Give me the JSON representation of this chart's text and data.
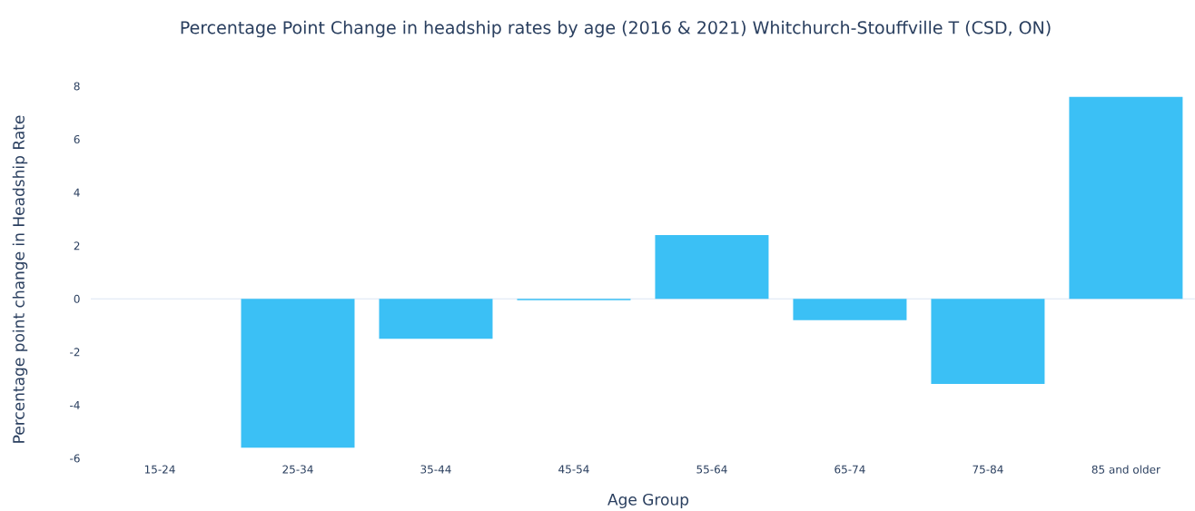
{
  "chart_data": {
    "type": "bar",
    "title": "Percentage Point Change in headship rates by age (2016 & 2021) Whitchurch-Stouffville T (CSD, ON)",
    "xlabel": "Age Group",
    "ylabel": "Percentage point change in Headship Rate",
    "categories": [
      "15-24",
      "25-34",
      "35-44",
      "45-54",
      "55-64",
      "65-74",
      "75-84",
      "85 and older"
    ],
    "values": [
      0,
      -5.6,
      -1.5,
      -0.05,
      2.4,
      -0.8,
      -3.2,
      7.6
    ],
    "color": "#3bc0f5",
    "ylim": [
      -6,
      8
    ],
    "ref_lines": [
      {
        "axis": "y",
        "value": 0,
        "color": "#e5ecf6"
      }
    ],
    "yticks": [
      -6,
      -4,
      -2,
      0,
      2,
      4,
      6,
      8
    ],
    "grid": false,
    "legend": false
  }
}
